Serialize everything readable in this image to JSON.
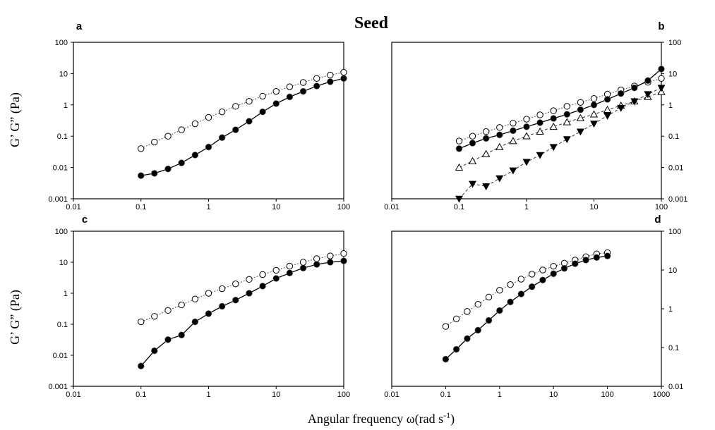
{
  "figure": {
    "title": "Seed",
    "xlabel_main": "Angular frequency ω(rad s",
    "xlabel_sup": "-1",
    "xlabel_tail": ")",
    "ylabel": "G’ G” (Pa)"
  },
  "chart_data": [
    {
      "panel": "a",
      "type": "scatter",
      "x_scale": "log",
      "y_scale": "log",
      "xlim": [
        0.01,
        100
      ],
      "ylim": [
        0.001,
        100
      ],
      "x_ticks": [
        "0.01",
        "0.1",
        "1",
        "10",
        "100"
      ],
      "y_ticks": [
        "0.001",
        "0.01",
        "0.1",
        "1",
        "10",
        "100"
      ],
      "y_axis_side": "left",
      "series": [
        {
          "style": "open-circle-dotted",
          "x": [
            0.1,
            0.158,
            0.251,
            0.398,
            0.631,
            1,
            1.585,
            2.512,
            3.981,
            6.31,
            10,
            15.85,
            25.12,
            39.81,
            63.1,
            100
          ],
          "y": [
            0.04,
            0.065,
            0.1,
            0.16,
            0.25,
            0.4,
            0.6,
            0.9,
            1.3,
            1.9,
            2.7,
            3.8,
            5.2,
            7,
            9,
            11
          ]
        },
        {
          "style": "filled-circle-solid",
          "x": [
            0.1,
            0.158,
            0.251,
            0.398,
            0.631,
            1,
            1.585,
            2.512,
            3.981,
            6.31,
            10,
            15.85,
            25.12,
            39.81,
            63.1,
            100
          ],
          "y": [
            0.0055,
            0.0065,
            0.009,
            0.014,
            0.025,
            0.045,
            0.09,
            0.16,
            0.3,
            0.6,
            1.1,
            1.8,
            2.7,
            4,
            5.5,
            7
          ]
        }
      ]
    },
    {
      "panel": "b",
      "type": "scatter",
      "x_scale": "log",
      "y_scale": "log",
      "xlim": [
        0.01,
        100
      ],
      "ylim": [
        0.001,
        100
      ],
      "x_ticks": [
        "0.01",
        "0.1",
        "1",
        "10",
        "100"
      ],
      "y_ticks": [
        "0.001",
        "0.01",
        "0.1",
        "1",
        "10",
        "100"
      ],
      "y_axis_side": "right",
      "series": [
        {
          "style": "open-circle-dotted",
          "x": [
            0.1,
            0.158,
            0.251,
            0.398,
            0.631,
            1,
            1.585,
            2.512,
            3.981,
            6.31,
            10,
            15.85,
            25.12,
            39.81,
            63.1,
            100
          ],
          "y": [
            0.07,
            0.1,
            0.14,
            0.19,
            0.26,
            0.35,
            0.48,
            0.65,
            0.9,
            1.2,
            1.6,
            2.2,
            3,
            4,
            5.3,
            7
          ]
        },
        {
          "style": "filled-circle-solid",
          "x": [
            0.1,
            0.158,
            0.251,
            0.398,
            0.631,
            1,
            1.585,
            2.512,
            3.981,
            6.31,
            10,
            15.85,
            25.12,
            39.81,
            63.1,
            100
          ],
          "y": [
            0.04,
            0.06,
            0.085,
            0.11,
            0.15,
            0.2,
            0.27,
            0.37,
            0.5,
            0.7,
            1,
            1.5,
            2.3,
            3.5,
            6,
            14
          ]
        },
        {
          "style": "open-triangle-dashed",
          "x": [
            0.1,
            0.158,
            0.251,
            0.398,
            0.631,
            1,
            1.585,
            2.512,
            3.981,
            6.31,
            10,
            15.85,
            25.12,
            39.81,
            63.1,
            100
          ],
          "y": [
            0.01,
            0.016,
            0.027,
            0.045,
            0.07,
            0.1,
            0.14,
            0.2,
            0.28,
            0.38,
            0.5,
            0.7,
            0.95,
            1.3,
            1.8,
            2.6
          ]
        },
        {
          "style": "filled-triangle-down-dashed",
          "x": [
            0.1,
            0.158,
            0.251,
            0.398,
            0.631,
            1,
            1.585,
            2.512,
            3.981,
            6.31,
            10,
            15.85,
            25.12,
            39.81,
            63.1,
            100
          ],
          "y": [
            0.001,
            0.003,
            0.0025,
            0.0045,
            0.008,
            0.015,
            0.025,
            0.045,
            0.08,
            0.14,
            0.25,
            0.45,
            0.8,
            1.3,
            2.2,
            3.5
          ]
        }
      ]
    },
    {
      "panel": "c",
      "type": "scatter",
      "x_scale": "log",
      "y_scale": "log",
      "xlim": [
        0.01,
        100
      ],
      "ylim": [
        0.001,
        100
      ],
      "x_ticks": [
        "0.01",
        "0.1",
        "1",
        "10",
        "100"
      ],
      "y_ticks": [
        "0.001",
        "0.01",
        "0.1",
        "1",
        "10",
        "100"
      ],
      "y_axis_side": "left",
      "series": [
        {
          "style": "open-circle-dotted",
          "x": [
            0.1,
            0.158,
            0.251,
            0.398,
            0.631,
            1,
            1.585,
            2.512,
            3.981,
            6.31,
            10,
            15.85,
            25.12,
            39.81,
            63.1,
            100
          ],
          "y": [
            0.12,
            0.18,
            0.28,
            0.42,
            0.65,
            1,
            1.4,
            2,
            2.8,
            4,
            5.5,
            7.5,
            10,
            13,
            16,
            19
          ]
        },
        {
          "style": "filled-circle-solid",
          "x": [
            0.1,
            0.158,
            0.251,
            0.398,
            0.631,
            1,
            1.585,
            2.512,
            3.981,
            6.31,
            10,
            15.85,
            25.12,
            39.81,
            63.1,
            100
          ],
          "y": [
            0.0045,
            0.014,
            0.032,
            0.045,
            0.12,
            0.22,
            0.38,
            0.6,
            1,
            1.7,
            3,
            4.5,
            6.5,
            8.5,
            10,
            11
          ]
        }
      ]
    },
    {
      "panel": "d",
      "type": "scatter",
      "x_scale": "log",
      "y_scale": "log",
      "xlim": [
        0.01,
        1000
      ],
      "ylim": [
        0.01,
        100
      ],
      "x_ticks": [
        "0.01",
        "0.1",
        "1",
        "10",
        "100",
        "1000"
      ],
      "y_ticks": [
        "0.01",
        "0.1",
        "1",
        "10",
        "100"
      ],
      "y_axis_side": "right",
      "series": [
        {
          "style": "open-circle-dotted",
          "x": [
            0.1,
            0.158,
            0.251,
            0.398,
            0.631,
            1,
            1.585,
            2.512,
            3.981,
            6.31,
            10,
            15.85,
            25.12,
            39.81,
            63.1,
            100
          ],
          "y": [
            0.35,
            0.55,
            0.85,
            1.3,
            2,
            3,
            4.2,
            5.8,
            7.8,
            10,
            12.5,
            15,
            18,
            22,
            26,
            28
          ]
        },
        {
          "style": "filled-circle-solid",
          "x": [
            0.1,
            0.158,
            0.251,
            0.398,
            0.631,
            1,
            1.585,
            2.512,
            3.981,
            6.31,
            10,
            15.85,
            25.12,
            39.81,
            63.1,
            100
          ],
          "y": [
            0.05,
            0.09,
            0.17,
            0.28,
            0.5,
            0.9,
            1.5,
            2.4,
            3.7,
            5.5,
            8,
            11,
            14.5,
            18,
            21,
            23
          ]
        }
      ]
    }
  ]
}
